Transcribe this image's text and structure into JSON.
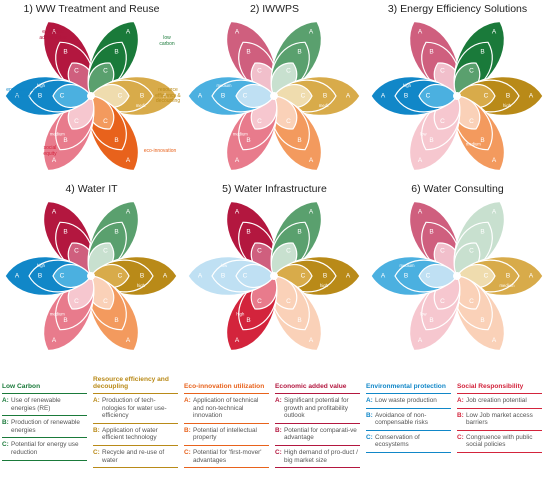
{
  "flowers": [
    {
      "title": "1) WW Treatment and Reuse",
      "petals": [
        {
          "cat": "economic",
          "grade": "A",
          "level": "",
          "intensity": 3
        },
        {
          "cat": "lowcarbon",
          "grade": "B",
          "level": "",
          "intensity": 3
        },
        {
          "cat": "resource",
          "grade": "B",
          "level": "medi.",
          "intensity": 2
        },
        {
          "cat": "eco",
          "grade": "C",
          "level": "",
          "intensity": 3
        },
        {
          "cat": "social",
          "grade": "C",
          "level": "medium",
          "intensity": 2
        },
        {
          "cat": "env",
          "grade": "B",
          "level": "high",
          "intensity": 3
        }
      ]
    },
    {
      "title": "2) IWWPS",
      "petals": [
        {
          "cat": "economic",
          "grade": "B",
          "level": "",
          "intensity": 2
        },
        {
          "cat": "lowcarbon",
          "grade": "B",
          "level": "",
          "intensity": 2
        },
        {
          "cat": "resource",
          "grade": "B",
          "level": "medi.",
          "intensity": 2
        },
        {
          "cat": "eco",
          "grade": "C",
          "level": "",
          "intensity": 2
        },
        {
          "cat": "social",
          "grade": "C",
          "level": "medium",
          "intensity": 2
        },
        {
          "cat": "env",
          "grade": "B",
          "level": "medium",
          "intensity": 2
        }
      ]
    },
    {
      "title": "3) Energy Efficiency Solutions",
      "petals": [
        {
          "cat": "economic",
          "grade": "B",
          "level": "",
          "intensity": 2
        },
        {
          "cat": "lowcarbon",
          "grade": "A",
          "level": "",
          "intensity": 3
        },
        {
          "cat": "resource",
          "grade": "A",
          "level": "high",
          "intensity": 3
        },
        {
          "cat": "eco",
          "grade": "C",
          "level": "medium",
          "intensity": 2
        },
        {
          "cat": "social",
          "grade": "A",
          "level": "low",
          "intensity": 1
        },
        {
          "cat": "env",
          "grade": "B",
          "level": "high",
          "intensity": 3
        }
      ]
    },
    {
      "title": "4) Water IT",
      "petals": [
        {
          "cat": "economic",
          "grade": "A",
          "level": "",
          "intensity": 3
        },
        {
          "cat": "lowcarbon",
          "grade": "B",
          "level": "",
          "intensity": 2
        },
        {
          "cat": "resource",
          "grade": "A",
          "level": "high",
          "intensity": 3
        },
        {
          "cat": "eco",
          "grade": "C",
          "level": "",
          "intensity": 2
        },
        {
          "cat": "social",
          "grade": "C",
          "level": "medium",
          "intensity": 2
        },
        {
          "cat": "env",
          "grade": "B",
          "level": "high",
          "intensity": 3
        }
      ]
    },
    {
      "title": "5) Water Infrastructure",
      "petals": [
        {
          "cat": "economic",
          "grade": "B",
          "level": "",
          "intensity": 3
        },
        {
          "cat": "lowcarbon",
          "grade": "A",
          "level": "",
          "intensity": 2
        },
        {
          "cat": "resource",
          "grade": "A",
          "level": "high",
          "intensity": 3
        },
        {
          "cat": "eco",
          "grade": "C",
          "level": "",
          "intensity": 1
        },
        {
          "cat": "social",
          "grade": "C",
          "level": "high",
          "intensity": 3
        },
        {
          "cat": "env",
          "grade": "B",
          "level": "low",
          "intensity": 1
        }
      ]
    },
    {
      "title": "6) Water Consulting",
      "petals": [
        {
          "cat": "economic",
          "grade": "B",
          "level": "",
          "intensity": 2
        },
        {
          "cat": "lowcarbon",
          "grade": "A",
          "level": "",
          "intensity": 1
        },
        {
          "cat": "resource",
          "grade": "A",
          "level": "medium",
          "intensity": 2
        },
        {
          "cat": "eco",
          "grade": "C",
          "level": "",
          "intensity": 1
        },
        {
          "cat": "social",
          "grade": "C",
          "level": "low",
          "intensity": 1
        },
        {
          "cat": "env",
          "grade": "B",
          "level": "medium",
          "intensity": 2
        }
      ]
    }
  ],
  "annotations": {
    "economic": "economic added value",
    "lowcarbon": "low carbon",
    "resource": "resource efficiency & decoupling",
    "eco": "eco-innovation",
    "social": "social equity",
    "env": "environmental protection"
  },
  "colors": {
    "lowcarbon": [
      "#c8e0cf",
      "#5aa06e",
      "#1a7a3a"
    ],
    "resource": [
      "#efdcae",
      "#d8ab4a",
      "#b98a18"
    ],
    "eco": [
      "#fad1b8",
      "#f39a5e",
      "#e8621c"
    ],
    "social": [
      "#f6c7cf",
      "#e87b8c",
      "#d3243c"
    ],
    "env": [
      "#bfe0f3",
      "#4bb0e0",
      "#1187c8"
    ],
    "economic": [
      "#f1bfcb",
      "#cf5f7e",
      "#b3173f"
    ],
    "neutral": "#dcdcdc"
  },
  "legend": [
    {
      "head": "Low Carbon",
      "color": "#1a7a3a",
      "items": [
        {
          "l": "A:",
          "t": "Use of renewable energies (RE)"
        },
        {
          "l": "B:",
          "t": "Production of renewable energies"
        },
        {
          "l": "C:",
          "t": "Potential for energy use reduction"
        }
      ]
    },
    {
      "head": "Resource efficiency and decoupling",
      "color": "#b98a18",
      "items": [
        {
          "l": "A:",
          "t": "Production of tech-nologies for water use-efficiency"
        },
        {
          "l": "B:",
          "t": "Application of water efficient technology"
        },
        {
          "l": "C:",
          "t": "Recycle and re-use of water"
        }
      ]
    },
    {
      "head": "Eco-innovation utilization",
      "color": "#e8621c",
      "items": [
        {
          "l": "A:",
          "t": "Application of technical and non-technical innovation"
        },
        {
          "l": "B:",
          "t": "Potential of intellectual property"
        },
        {
          "l": "C:",
          "t": "Potential for 'first-mover' advantages"
        }
      ]
    },
    {
      "head": "Economic added value",
      "color": "#b3173f",
      "items": [
        {
          "l": "A:",
          "t": "Significant potential for growth and profitability outlook"
        },
        {
          "l": "B:",
          "t": "Potential for comparati-ve advantage"
        },
        {
          "l": "C:",
          "t": "High demand of pro-duct / big market size"
        }
      ]
    },
    {
      "head": "Environmental protection",
      "color": "#1187c8",
      "items": [
        {
          "l": "A:",
          "t": "Low waste production"
        },
        {
          "l": "B:",
          "t": "Avoidance of non-compensable risks"
        },
        {
          "l": "C:",
          "t": "Conservation of ecosystems"
        }
      ]
    },
    {
      "head": "Social Responsibility",
      "color": "#d3243c",
      "items": [
        {
          "l": "A:",
          "t": "Job creation potential"
        },
        {
          "l": "B:",
          "t": "Low Job market access barriers"
        },
        {
          "l": "C:",
          "t": "Congruence with public social policies"
        }
      ]
    }
  ]
}
